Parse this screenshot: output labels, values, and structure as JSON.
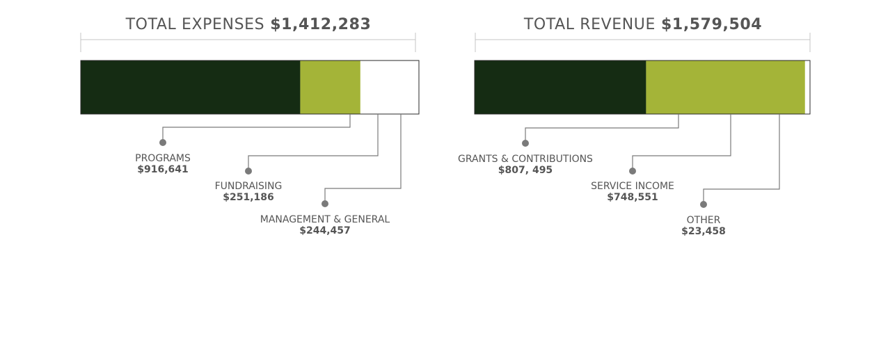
{
  "colors": {
    "primary": "#152c13",
    "secondary": "#a4b438",
    "other": "#ffffff",
    "border": "#2a2a2a",
    "leader": "#7a7a7a",
    "dot": "#7a7a7a",
    "text": "#555555"
  },
  "chart_data": [
    {
      "type": "bar",
      "title_prefix": "TOTAL EXPENSES",
      "title_amount": "$1,412,283",
      "total": 1412283,
      "categories": [
        {
          "label": "PROGRAMS",
          "value_text": "$916,641",
          "value": 916641
        },
        {
          "label": "FUNDRAISING",
          "value_text": "$251,186",
          "value": 251186
        },
        {
          "label": "MANAGEMENT & GENERAL",
          "value_text": "$244,457",
          "value": 244457
        }
      ]
    },
    {
      "type": "bar",
      "title_prefix": "TOTAL REVENUE",
      "title_amount": "$1,579,504",
      "total": 1579504,
      "categories": [
        {
          "label": "GRANTS & CONTRIBUTIONS",
          "value_text": "$807, 495",
          "value": 807495
        },
        {
          "label": "SERVICE INCOME",
          "value_text": "$748,551",
          "value": 748551
        },
        {
          "label": "OTHER",
          "value_text": "$23,458",
          "value": 23458
        }
      ]
    }
  ]
}
